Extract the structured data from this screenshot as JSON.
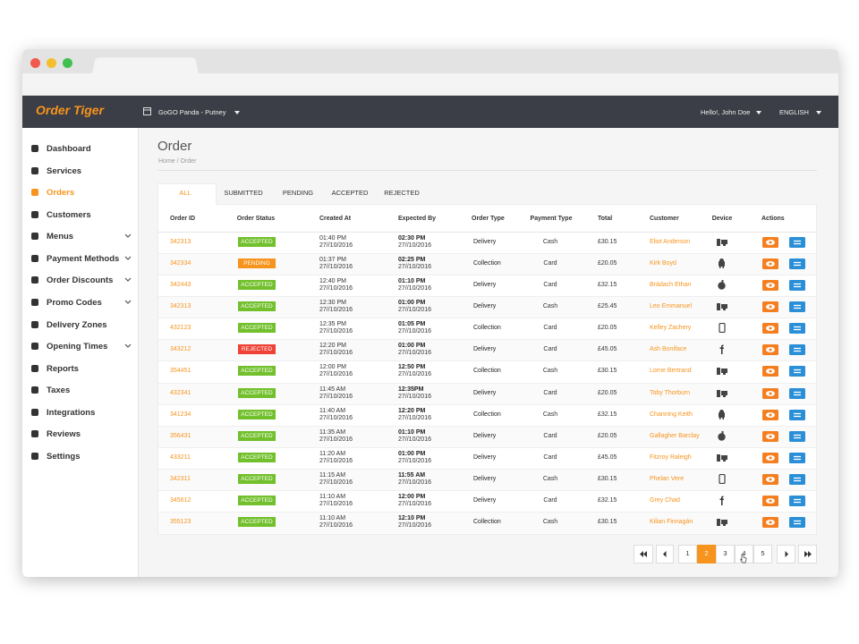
{
  "browser": {
    "brand": "Order Tiger",
    "store": "GoGO Panda - Putney",
    "user": "Hello!, John Doe",
    "language": "ENGLISH"
  },
  "sidebar": {
    "active": 2,
    "items": [
      {
        "label": "Dashboard"
      },
      {
        "label": "Services"
      },
      {
        "label": "Orders"
      },
      {
        "label": "Customers"
      },
      {
        "label": "Menus",
        "submenu": true
      },
      {
        "label": "Payment Methods",
        "submenu": true
      },
      {
        "label": "Order Discounts",
        "submenu": true
      },
      {
        "label": "Promo Codes",
        "submenu": true
      },
      {
        "label": "Delivery Zones"
      },
      {
        "label": "Opening Times",
        "submenu": true
      },
      {
        "label": "Reports"
      },
      {
        "label": "Taxes"
      },
      {
        "label": "Integrations"
      },
      {
        "label": "Reviews"
      },
      {
        "label": "Settings"
      }
    ]
  },
  "page": {
    "title": "Order",
    "breadcrumb": "Home / Order"
  },
  "tabs": {
    "active": 0,
    "items": [
      "ALL",
      "SUBMITTED",
      "PENDING",
      "ACCEPTED",
      "REJECTED"
    ]
  },
  "status_colors": {
    "ACCEPTED": "#72c02c",
    "PENDING": "#f7941d",
    "REJECTED": "#ef4136"
  },
  "table": {
    "columns": [
      "Order ID",
      "Order Status",
      "Created At",
      "Expected By",
      "Order Type",
      "Payment Type",
      "Total",
      "Customer",
      "Device",
      "Actions"
    ],
    "rows": [
      {
        "id": "342313",
        "status": "ACCEPTED",
        "created_time": "01:40 PM",
        "created_date": "27//10/2016",
        "expected_time": "02:30 PM",
        "expected_date": "27//10/2016",
        "type": "Delivery",
        "payment": "Cash",
        "total": "£30.15",
        "customer": "Eliot Anderson",
        "device": "desktop"
      },
      {
        "id": "342334",
        "status": "PENDING",
        "created_time": "01:37 PM",
        "created_date": "27//10/2016",
        "expected_time": "02:25 PM",
        "expected_date": "27//10/2016",
        "type": "Collection",
        "payment": "Card",
        "total": "£20.05",
        "customer": "Kirk Boyd",
        "device": "android"
      },
      {
        "id": "342443",
        "status": "ACCEPTED",
        "created_time": "12:40 PM",
        "created_date": "27//10/2016",
        "expected_time": "01:10 PM",
        "expected_date": "27//10/2016",
        "type": "Delivery",
        "payment": "Card",
        "total": "£32.15",
        "customer": "Brádach Ethan",
        "device": "apple"
      },
      {
        "id": "342313",
        "status": "ACCEPTED",
        "created_time": "12:30 PM",
        "created_date": "27//10/2016",
        "expected_time": "01:00 PM",
        "expected_date": "27//10/2016",
        "type": "Delivery",
        "payment": "Cash",
        "total": "£25.45",
        "customer": "Leo Emmanuel",
        "device": "desktop"
      },
      {
        "id": "432123",
        "status": "ACCEPTED",
        "created_time": "12:35 PM",
        "created_date": "27//10/2016",
        "expected_time": "01:05 PM",
        "expected_date": "27//10/2016",
        "type": "Collection",
        "payment": "Card",
        "total": "£20.05",
        "customer": "Kelley Zachery",
        "device": "mobile"
      },
      {
        "id": "343212",
        "status": "REJECTED",
        "created_time": "12:20 PM",
        "created_date": "27//10/2016",
        "expected_time": "01:00 PM",
        "expected_date": "27//10/2016",
        "type": "Delivery",
        "payment": "Card",
        "total": "£45.05",
        "customer": "Ash Boniface",
        "device": "facebook"
      },
      {
        "id": "354451",
        "status": "ACCEPTED",
        "created_time": "12:00 PM",
        "created_date": "27//10/2016",
        "expected_time": "12:50 PM",
        "expected_date": "27//10/2016",
        "type": "Collection",
        "payment": "Cash",
        "total": "£30.15",
        "customer": "Lorne Bertrand",
        "device": "desktop"
      },
      {
        "id": "432341",
        "status": "ACCEPTED",
        "created_time": "11:45 AM",
        "created_date": "27//10/2016",
        "expected_time": "12:35PM",
        "expected_date": "27//10/2016",
        "type": "Delivery",
        "payment": "Card",
        "total": "£20.05",
        "customer": "Toby Thorburn",
        "device": "desktop"
      },
      {
        "id": "341234",
        "status": "ACCEPTED",
        "created_time": "11:40 AM",
        "created_date": "27//10/2016",
        "expected_time": "12:20 PM",
        "expected_date": "27//10/2016",
        "type": "Collection",
        "payment": "Cash",
        "total": "£32.15",
        "customer": "Channing Keith",
        "device": "android"
      },
      {
        "id": "356431",
        "status": "ACCEPTED",
        "created_time": "11:35 AM",
        "created_date": "27//10/2016",
        "expected_time": "01:10 PM",
        "expected_date": "27//10/2016",
        "type": "Delivery",
        "payment": "Card",
        "total": "£20.05",
        "customer": "Gallagher Barclay",
        "device": "apple"
      },
      {
        "id": "433211",
        "status": "ACCEPTED",
        "created_time": "11:20 AM",
        "created_date": "27//10/2016",
        "expected_time": "01:00 PM",
        "expected_date": "27//10/2016",
        "type": "Delivery",
        "payment": "Card",
        "total": "£45.05",
        "customer": "Fitzroy Raleigh",
        "device": "desktop"
      },
      {
        "id": "342311",
        "status": "ACCEPTED",
        "created_time": "11:15 AM",
        "created_date": "27//10/2016",
        "expected_time": "11:55 AM",
        "expected_date": "27//10/2016",
        "type": "Delivery",
        "payment": "Cash",
        "total": "£30.15",
        "customer": "Phelan Vere",
        "device": "mobile"
      },
      {
        "id": "345612",
        "status": "ACCEPTED",
        "created_time": "11:10 AM",
        "created_date": "27//10/2016",
        "expected_time": "12:00 PM",
        "expected_date": "27//10/2016",
        "type": "Delivery",
        "payment": "Card",
        "total": "£32.15",
        "customer": "Grey Chad",
        "device": "facebook"
      },
      {
        "id": "355123",
        "status": "ACCEPTED",
        "created_time": "11:10 AM",
        "created_date": "27//10/2016",
        "expected_time": "12:10 PM",
        "expected_date": "27//10/2016",
        "type": "Collection",
        "payment": "Cash",
        "total": "£30.15",
        "customer": "Kilian Finnagán",
        "device": "desktop"
      }
    ]
  },
  "pagination": {
    "pages": [
      1,
      2,
      3,
      4,
      5
    ],
    "current": 2
  }
}
